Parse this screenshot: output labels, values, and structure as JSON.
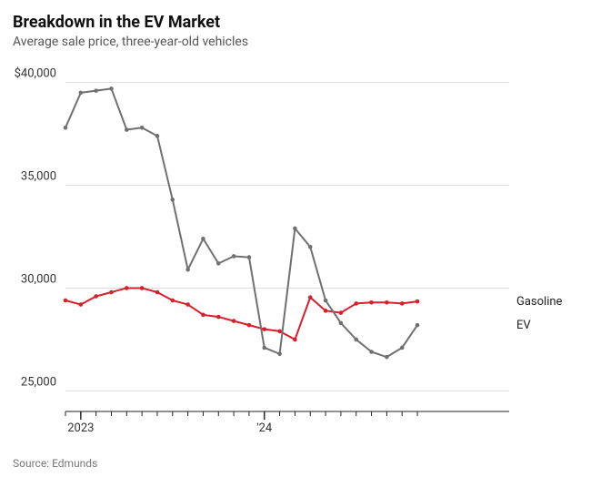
{
  "title": "Breakdown in the EV Market",
  "subtitle": "Average sale price, three-year-old vehicles",
  "source_label": "Source: Edmunds",
  "chart": {
    "type": "line",
    "background_color": "#ffffff",
    "gridline_color": "#dcdcdc",
    "axis_color": "#222222",
    "tick_color": "#222222",
    "y": {
      "min": 24000,
      "max": 41000,
      "ticks": [
        25000,
        30000,
        35000,
        40000
      ],
      "tick_labels": [
        "25,000",
        "30,000",
        "35,000",
        "$40,000"
      ],
      "label_fontsize": 13,
      "label_color": "#333333"
    },
    "x": {
      "min": 0,
      "max": 29,
      "ticks_major": [
        1,
        13
      ],
      "tick_labels_major": [
        "2023",
        "'24"
      ],
      "ticks_minor": [
        0,
        1,
        2,
        3,
        4,
        5,
        6,
        7,
        8,
        9,
        10,
        11,
        12,
        13,
        14,
        15,
        16,
        17,
        18,
        19,
        20,
        21,
        22,
        23
      ],
      "label_fontsize": 13,
      "label_color": "#333333"
    },
    "series": {
      "gasoline": {
        "label": "Gasoline",
        "color": "#d6202a",
        "line_width": 2,
        "marker_radius": 2.3,
        "marker_style": "circle",
        "y": [
          29400,
          29200,
          29600,
          29800,
          30000,
          30000,
          29800,
          29400,
          29200,
          28700,
          28600,
          28400,
          28200,
          28000,
          27900,
          27500,
          29550,
          28900,
          28800,
          29250,
          29300,
          29300,
          29250,
          29350
        ]
      },
      "ev": {
        "label": "EV",
        "color": "#707070",
        "line_width": 2,
        "marker_radius": 2.3,
        "marker_style": "circle",
        "y": [
          37800,
          39500,
          39600,
          39700,
          37700,
          37800,
          37400,
          34300,
          30900,
          32400,
          31200,
          31550,
          31500,
          27100,
          26800,
          32900,
          32000,
          29400,
          28300,
          27500,
          26900,
          26650,
          27100,
          28200
        ]
      }
    },
    "label_order": [
      "gasoline",
      "ev"
    ],
    "series_label_fontsize": 13
  }
}
